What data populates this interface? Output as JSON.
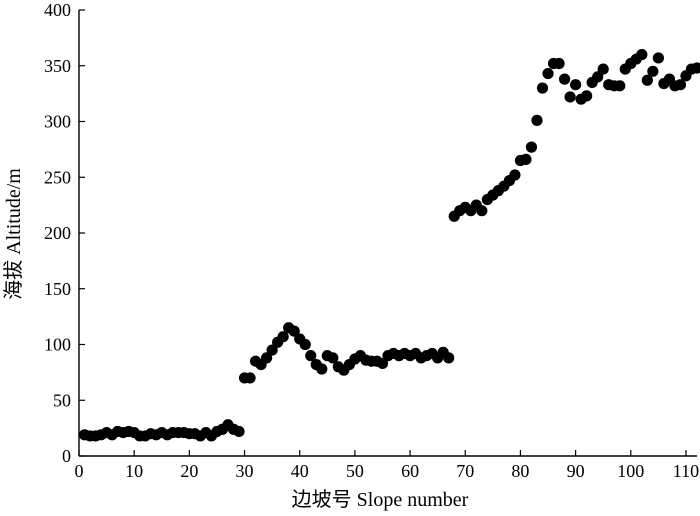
{
  "chart_data": {
    "type": "scatter",
    "xlabel": "边坡号 Slope number",
    "ylabel": "海拔 Altitude/m",
    "xlim": [
      0,
      112
    ],
    "ylim": [
      0,
      400
    ],
    "xticks": [
      0,
      10,
      20,
      30,
      40,
      50,
      60,
      70,
      80,
      90,
      100,
      110
    ],
    "yticks": [
      0,
      50,
      100,
      150,
      200,
      250,
      300,
      350,
      400
    ],
    "grid": false,
    "series": [
      {
        "x": [
          1,
          2,
          3,
          4,
          5,
          6,
          7,
          8,
          9,
          10,
          11,
          12,
          13,
          14,
          15,
          16,
          17,
          18,
          19,
          20,
          21,
          22,
          23,
          24,
          25,
          26,
          27,
          28,
          29,
          30,
          31,
          32,
          33,
          34,
          35,
          36,
          37,
          38,
          39,
          40,
          41,
          42,
          43,
          44,
          45,
          46,
          47,
          48,
          49,
          50,
          51,
          52,
          53,
          54,
          55,
          56,
          57,
          58,
          59,
          60,
          61,
          62,
          63,
          64,
          65,
          66,
          67,
          68,
          69,
          70,
          71,
          72,
          73,
          74,
          75,
          76,
          77,
          78,
          79,
          80,
          81,
          82,
          83,
          84,
          85,
          86,
          87,
          88,
          89,
          90,
          91,
          92,
          93,
          94,
          95,
          96,
          97,
          98,
          99,
          100,
          101,
          102,
          103,
          104,
          105,
          106,
          107,
          108,
          109,
          110,
          111,
          112
        ],
        "y": [
          19,
          18,
          18,
          19,
          21,
          19,
          22,
          21,
          22,
          21,
          18,
          18,
          20,
          19,
          21,
          19,
          21,
          21,
          21,
          20,
          20,
          18,
          21,
          18,
          22,
          24,
          28,
          24,
          22,
          70,
          70,
          85,
          82,
          88,
          95,
          102,
          107,
          115,
          112,
          105,
          100,
          90,
          82,
          78,
          90,
          88,
          80,
          77,
          82,
          87,
          90,
          86,
          85,
          85,
          83,
          90,
          92,
          90,
          92,
          90,
          92,
          88,
          90,
          92,
          88,
          93,
          88,
          215,
          220,
          223,
          220,
          225,
          220,
          230,
          234,
          238,
          242,
          247,
          252,
          265,
          266,
          277,
          301,
          330,
          343,
          352,
          352,
          338,
          322,
          333,
          320,
          323,
          335,
          340,
          347,
          333,
          332,
          332,
          347,
          352,
          356,
          360,
          337,
          345,
          357,
          334,
          338,
          332,
          333,
          341,
          347,
          348
        ]
      }
    ]
  }
}
